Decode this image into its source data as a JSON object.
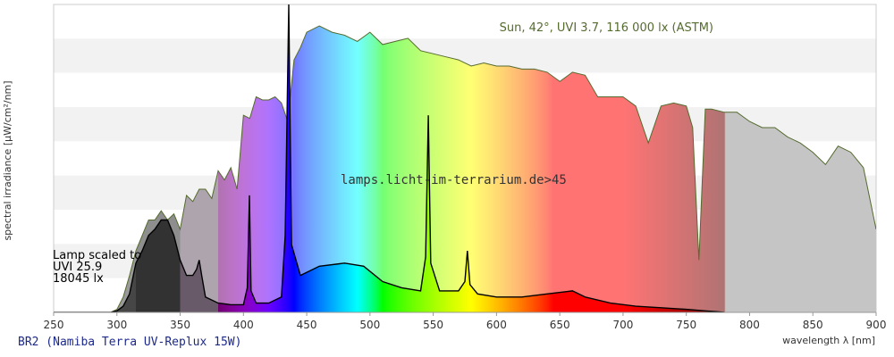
{
  "chart_data": {
    "type": "area",
    "title": "BR2 (Namiba Terra UV-Replux 15W)",
    "xlabel": "wavelength λ [nm]",
    "ylabel": "spectral irradiance [µW/cm²/nm]",
    "xlim": [
      250,
      900
    ],
    "ylim": [
      0,
      1
    ],
    "x_ticks": [
      250,
      300,
      350,
      400,
      450,
      500,
      550,
      600,
      650,
      700,
      750,
      800,
      850,
      900
    ],
    "grid": "horizontal bands",
    "annotations": {
      "sun": "Sun, 42°, UVI 3.7, 116 000 lx (ASTM)",
      "watermark": "lamps.licht-im-terrarium.de>45",
      "lamp_line1": "Lamp scaled to",
      "lamp_line2": "UVI 25.9",
      "lamp_line3": "18045 lx"
    },
    "series": [
      {
        "name": "Sun, 42°, UVI 3.7, 116 000 lx (ASTM)",
        "color": "#556b2f",
        "x": [
          295,
          300,
          305,
          310,
          315,
          320,
          325,
          330,
          335,
          340,
          345,
          350,
          355,
          360,
          365,
          370,
          375,
          380,
          385,
          390,
          395,
          400,
          405,
          410,
          415,
          420,
          425,
          430,
          435,
          440,
          445,
          450,
          460,
          470,
          480,
          490,
          500,
          510,
          520,
          530,
          540,
          550,
          560,
          570,
          580,
          590,
          600,
          610,
          620,
          630,
          640,
          650,
          660,
          670,
          680,
          690,
          700,
          710,
          720,
          730,
          740,
          750,
          755,
          760,
          765,
          770,
          780,
          790,
          800,
          810,
          820,
          830,
          840,
          850,
          860,
          870,
          880,
          890,
          900
        ],
        "y": [
          0.0,
          0.01,
          0.05,
          0.12,
          0.2,
          0.25,
          0.3,
          0.3,
          0.33,
          0.3,
          0.32,
          0.27,
          0.38,
          0.36,
          0.4,
          0.4,
          0.37,
          0.46,
          0.43,
          0.47,
          0.4,
          0.64,
          0.63,
          0.7,
          0.69,
          0.69,
          0.7,
          0.68,
          0.62,
          0.82,
          0.86,
          0.91,
          0.93,
          0.91,
          0.9,
          0.88,
          0.91,
          0.87,
          0.88,
          0.89,
          0.85,
          0.84,
          0.83,
          0.82,
          0.8,
          0.81,
          0.8,
          0.8,
          0.79,
          0.79,
          0.78,
          0.75,
          0.78,
          0.77,
          0.7,
          0.7,
          0.7,
          0.67,
          0.55,
          0.67,
          0.68,
          0.67,
          0.6,
          0.17,
          0.66,
          0.66,
          0.65,
          0.65,
          0.62,
          0.6,
          0.6,
          0.57,
          0.55,
          0.52,
          0.48,
          0.54,
          0.52,
          0.47,
          0.27
        ]
      },
      {
        "name": "BR2 (Namiba Terra UV-Replux 15W)",
        "color": "#000000",
        "x": [
          250,
          290,
          295,
          300,
          305,
          310,
          315,
          320,
          325,
          330,
          335,
          340,
          345,
          350,
          355,
          360,
          363,
          365,
          367,
          370,
          380,
          390,
          400,
          403,
          404.7,
          406,
          410,
          420,
          430,
          433,
          435.8,
          438,
          445,
          460,
          480,
          495,
          510,
          525,
          540,
          544,
          546.1,
          548,
          555,
          570,
          575,
          577,
          579,
          585,
          600,
          620,
          640,
          660,
          670,
          690,
          710,
          730,
          750,
          765,
          775,
          780
        ],
        "y": [
          0.0,
          0.0,
          0.0,
          0.005,
          0.02,
          0.06,
          0.16,
          0.2,
          0.25,
          0.27,
          0.3,
          0.3,
          0.25,
          0.17,
          0.12,
          0.12,
          0.14,
          0.17,
          0.12,
          0.05,
          0.03,
          0.025,
          0.025,
          0.08,
          0.38,
          0.07,
          0.03,
          0.03,
          0.05,
          0.25,
          1.0,
          0.22,
          0.12,
          0.15,
          0.16,
          0.15,
          0.1,
          0.08,
          0.07,
          0.18,
          0.64,
          0.16,
          0.07,
          0.07,
          0.1,
          0.2,
          0.09,
          0.06,
          0.05,
          0.05,
          0.06,
          0.07,
          0.05,
          0.03,
          0.02,
          0.015,
          0.01,
          0.005,
          0.002,
          0.0
        ]
      }
    ]
  }
}
